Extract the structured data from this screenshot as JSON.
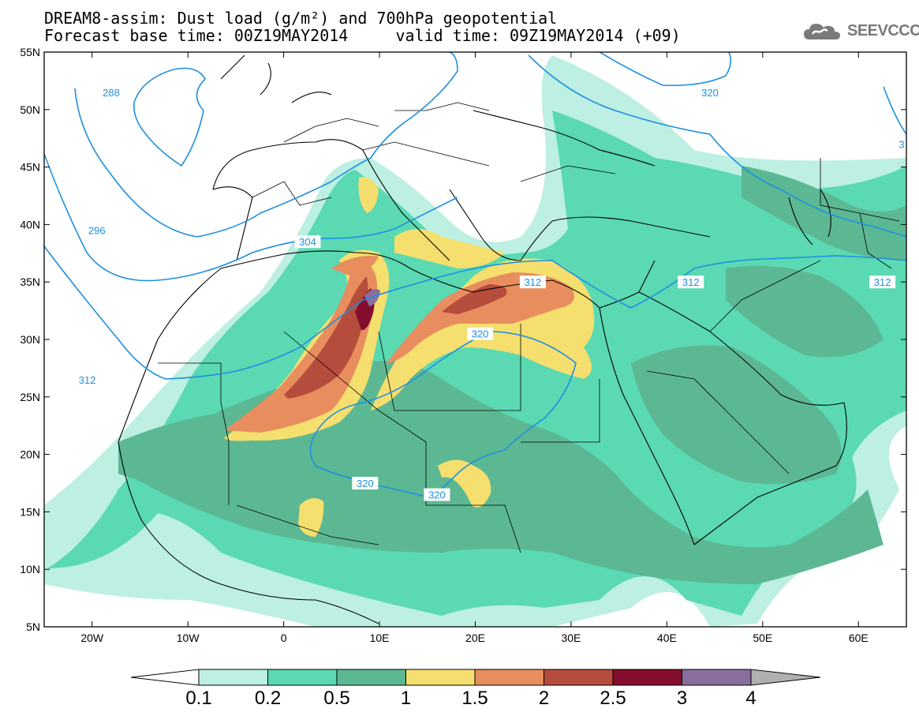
{
  "title": {
    "line1": "DREAM8-assim: Dust load (g/m²) and 700hPa geopotential",
    "line2": "Forecast base time: 00Z19MAY2014     valid time: 09Z19MAY2014 (+09)"
  },
  "logo": {
    "text": "SEEVCCC",
    "icon": "cloud-icon"
  },
  "map": {
    "lon_range": [
      -25,
      65
    ],
    "lat_range": [
      5,
      55
    ],
    "lat_ticks": [
      {
        "lat": 55,
        "label": "55N"
      },
      {
        "lat": 50,
        "label": "50N"
      },
      {
        "lat": 45,
        "label": "45N"
      },
      {
        "lat": 40,
        "label": "40N"
      },
      {
        "lat": 35,
        "label": "35N"
      },
      {
        "lat": 30,
        "label": "30N"
      },
      {
        "lat": 25,
        "label": "25N"
      },
      {
        "lat": 20,
        "label": "20N"
      },
      {
        "lat": 15,
        "label": "15N"
      },
      {
        "lat": 10,
        "label": "10N"
      },
      {
        "lat": 5,
        "label": "5N"
      }
    ],
    "lon_ticks": [
      {
        "lon": -20,
        "label": "20W"
      },
      {
        "lon": -10,
        "label": "10W"
      },
      {
        "lon": 0,
        "label": "0"
      },
      {
        "lon": 10,
        "label": "10E"
      },
      {
        "lon": 20,
        "label": "20E"
      },
      {
        "lon": 30,
        "label": "30E"
      },
      {
        "lon": 40,
        "label": "40E"
      },
      {
        "lon": 50,
        "label": "50E"
      },
      {
        "lon": 60,
        "label": "60E"
      }
    ],
    "contour_color": "#1e90e0",
    "contour_labels": [
      {
        "text": "288",
        "lon": -18,
        "lat": 51.5
      },
      {
        "text": "296",
        "lon": -19.5,
        "lat": 39.5
      },
      {
        "text": "304",
        "lon": 2.5,
        "lat": 38.5
      },
      {
        "text": "312",
        "lon": -20.5,
        "lat": 26.5
      },
      {
        "text": "312",
        "lon": 26,
        "lat": 35
      },
      {
        "text": "312",
        "lon": 42.5,
        "lat": 35
      },
      {
        "text": "312",
        "lon": 62.5,
        "lat": 35
      },
      {
        "text": "320",
        "lon": 20.5,
        "lat": 30.5
      },
      {
        "text": "320",
        "lon": 8.5,
        "lat": 17.5
      },
      {
        "text": "320",
        "lon": 16,
        "lat": 16.5
      },
      {
        "text": "320",
        "lon": 44.5,
        "lat": 51.5
      },
      {
        "text": "3",
        "lon": 64.5,
        "lat": 47
      }
    ]
  },
  "colorbar": {
    "labels": [
      "0.1",
      "0.2",
      "0.5",
      "1",
      "1.5",
      "2",
      "2.5",
      "3",
      "4"
    ],
    "colors": [
      "#bdefe3",
      "#5ad9b3",
      "#5cb893",
      "#f5df6e",
      "#e88d5e",
      "#b54c3c",
      "#840e2c",
      "#8a6e9e"
    ],
    "under_color": "#ffffff",
    "over_color": "#b0b0b0"
  },
  "dust_colors": {
    "low": "#bdefe3",
    "med": "#5ad9b3",
    "high": "#5cb893",
    "y1": "#f5df6e",
    "o15": "#e88d5e",
    "r2": "#b54c3c",
    "d25": "#840e2c",
    "p3": "#8a6e9e"
  }
}
